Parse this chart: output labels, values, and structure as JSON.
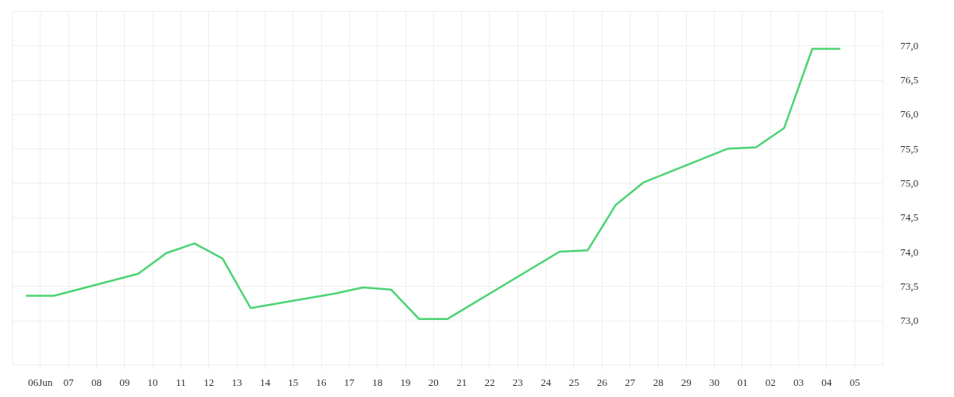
{
  "chart_data": {
    "type": "line",
    "x": [
      "--06-05T12:00",
      "--06-06T12:00",
      "--06-09T12:00",
      "--06-10T12:00",
      "--06-11T12:00",
      "--06-12T12:00",
      "--06-13T12:00",
      "--06-16T12:00",
      "--06-17T12:00",
      "--06-18T12:00",
      "--06-19T12:00",
      "--06-20T12:00",
      "--06-24T12:00",
      "--06-25T12:00",
      "--06-26T12:00",
      "--06-27T12:00",
      "--06-30T12:00",
      "--07-01T12:00",
      "--07-02T12:00",
      "--07-03T12:00",
      "--07-04T12:00"
    ],
    "series": [
      {
        "color": "#4cd474",
        "values": [
          73.36,
          73.36,
          73.68,
          73.98,
          74.12,
          73.9,
          73.18,
          73.39,
          73.48,
          73.45,
          73.02,
          73.02,
          74.0,
          74.02,
          74.68,
          75.01,
          75.5,
          75.52,
          75.8,
          76.95,
          76.95
        ]
      }
    ],
    "xlim": [
      "--06-05",
      "--07-06"
    ],
    "xticks": [
      {
        "value": "--06-06",
        "label": "06Jun"
      },
      {
        "value": "--06-07",
        "label": "07"
      },
      {
        "value": "--06-08",
        "label": "08"
      },
      {
        "value": "--06-09",
        "label": "09"
      },
      {
        "value": "--06-10",
        "label": "10"
      },
      {
        "value": "--06-11",
        "label": "11"
      },
      {
        "value": "--06-12",
        "label": "12"
      },
      {
        "value": "--06-13",
        "label": "13"
      },
      {
        "value": "--06-14",
        "label": "14"
      },
      {
        "value": "--06-15",
        "label": "15"
      },
      {
        "value": "--06-16",
        "label": "16"
      },
      {
        "value": "--06-17",
        "label": "17"
      },
      {
        "value": "--06-18",
        "label": "18"
      },
      {
        "value": "--06-19",
        "label": "19"
      },
      {
        "value": "--06-20",
        "label": "20"
      },
      {
        "value": "--06-21",
        "label": "21"
      },
      {
        "value": "--06-22",
        "label": "22"
      },
      {
        "value": "--06-23",
        "label": "23"
      },
      {
        "value": "--06-24",
        "label": "24"
      },
      {
        "value": "--06-25",
        "label": "25"
      },
      {
        "value": "--06-26",
        "label": "26"
      },
      {
        "value": "--06-27",
        "label": "27"
      },
      {
        "value": "--06-28",
        "label": "28"
      },
      {
        "value": "--06-29",
        "label": "29"
      },
      {
        "value": "--06-30",
        "label": "30"
      },
      {
        "value": "--07-01",
        "label": "01"
      },
      {
        "value": "--07-02",
        "label": "02"
      },
      {
        "value": "--07-03",
        "label": "03"
      },
      {
        "value": "--07-04",
        "label": "04"
      },
      {
        "value": "--07-05",
        "label": "05"
      }
    ],
    "ylim": [
      72.36,
      77.5
    ],
    "yticks": [
      {
        "value": 73,
        "label": "73,0"
      },
      {
        "value": 73.5,
        "label": "73,5"
      },
      {
        "value": 74,
        "label": "74,0"
      },
      {
        "value": 74.5,
        "label": "74,5"
      },
      {
        "value": 75,
        "label": "75,0"
      },
      {
        "value": 75.5,
        "label": "75,5"
      },
      {
        "value": 76,
        "label": "76,0"
      },
      {
        "value": 76.5,
        "label": "76,5"
      },
      {
        "value": 77,
        "label": "77,0"
      },
      {
        "value": 77.5,
        "label": null
      }
    ],
    "grid": true,
    "marker": "none",
    "line_style": "solid"
  }
}
